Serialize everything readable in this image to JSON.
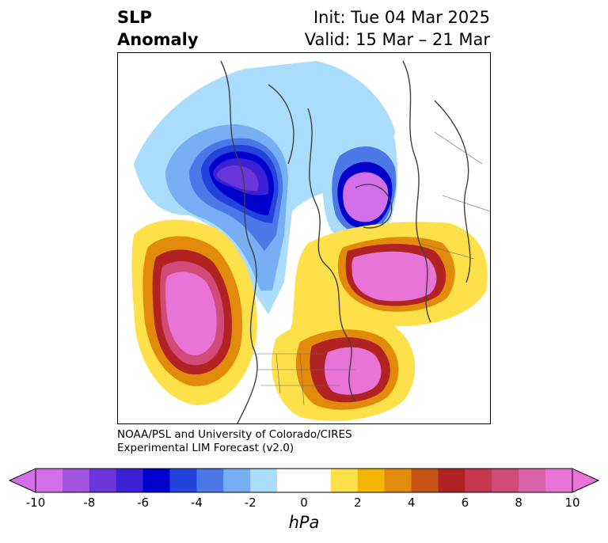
{
  "title": {
    "line1": "SLP",
    "line2": "Anomaly"
  },
  "init": "Init: Tue 04 Mar 2025",
  "valid": "Valid: 15 Mar – 21 Mar",
  "credit": {
    "line1": "NOAA/PSL and University of Colorado/CIRES",
    "line2": "Experimental LIM Forecast (v2.0)"
  },
  "colorbar": {
    "unit": "hPa",
    "min": -10,
    "max": 10,
    "step": 1,
    "colors": [
      "#d36fe8",
      "#a155e0",
      "#6b36d9",
      "#3c20d4",
      "#0000cc",
      "#2244dd",
      "#4b78e6",
      "#78aef4",
      "#aadcfc",
      "#ffffff",
      "#ffffff",
      "#fee04a",
      "#f3b500",
      "#e18a0c",
      "#c65316",
      "#b02322",
      "#c5384f",
      "#d14a78",
      "#da62a8",
      "#e874d7"
    ],
    "ticks": [
      "-10",
      "-8",
      "-6",
      "-4",
      "-2",
      "0",
      "2",
      "4",
      "6",
      "8",
      "10"
    ]
  }
}
